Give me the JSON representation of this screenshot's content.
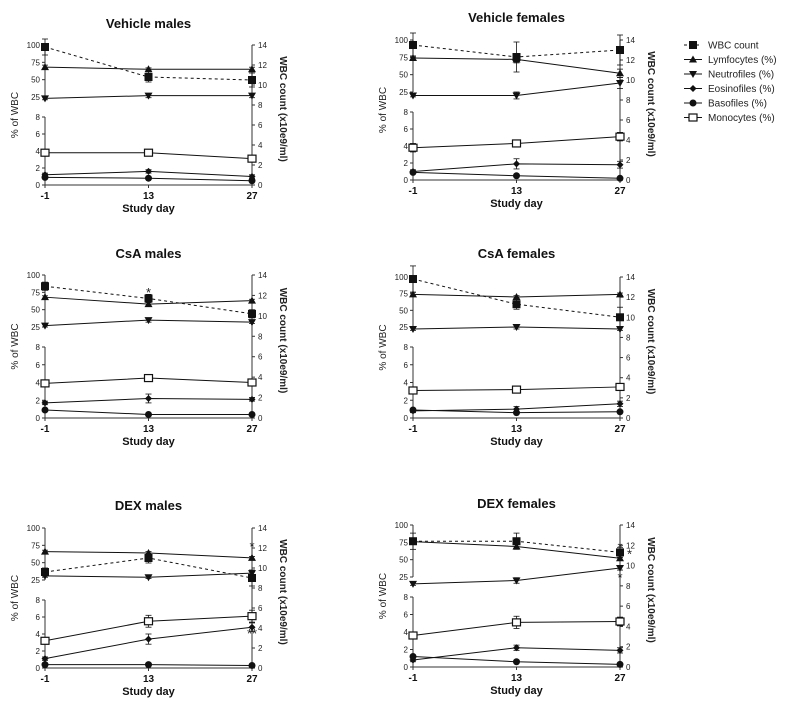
{
  "legend": {
    "items": [
      {
        "label": "WBC count",
        "marker": "square-filled",
        "dashed": true
      },
      {
        "label": "Lymfocytes (%)",
        "marker": "triangle-up",
        "dashed": false
      },
      {
        "label": "Neutrofiles (%)",
        "marker": "triangle-down",
        "dashed": false
      },
      {
        "label": "Eosinofiles (%)",
        "marker": "diamond",
        "dashed": false
      },
      {
        "label": "Basofiles (%)",
        "marker": "circle",
        "dashed": false
      },
      {
        "label": "Monocytes (%)",
        "marker": "square-open",
        "dashed": false
      }
    ]
  },
  "chart_data": [
    {
      "type": "line",
      "title": "Vehicle males",
      "xlabel": "Study day",
      "ylabel": "% of WBC",
      "y2label": "WBC count (x10e9/ml)",
      "x": [
        -1,
        13,
        27
      ],
      "upper_yticks": [
        25,
        50,
        75,
        100
      ],
      "lower_yticks": [
        0,
        2,
        4,
        6,
        8
      ],
      "y2ticks": [
        0,
        2,
        4,
        6,
        8,
        10,
        12,
        14
      ],
      "series": [
        {
          "name": "WBC count",
          "axis": "right",
          "values": [
            13.8,
            10.8,
            10.5
          ],
          "err": [
            0.8,
            0.5,
            0.7
          ]
        },
        {
          "name": "Lymfocytes (%)",
          "axis": "upper",
          "values": [
            68,
            65,
            65
          ],
          "err": [
            3,
            2,
            3
          ]
        },
        {
          "name": "Neutrofiles (%)",
          "axis": "upper",
          "values": [
            23,
            27,
            27
          ],
          "err": [
            2,
            3,
            3
          ]
        },
        {
          "name": "Eosinofiles (%)",
          "axis": "lower",
          "values": [
            1.2,
            1.6,
            1.0
          ],
          "err": [
            0.2,
            0.2,
            0.2
          ]
        },
        {
          "name": "Basofiles (%)",
          "axis": "lower",
          "values": [
            0.9,
            0.8,
            0.5
          ],
          "err": [
            0.1,
            0.1,
            0.1
          ]
        },
        {
          "name": "Monocytes (%)",
          "axis": "lower",
          "values": [
            3.8,
            3.8,
            3.1
          ],
          "err": [
            0.3,
            0.2,
            0.3
          ]
        }
      ],
      "annotations": []
    },
    {
      "type": "line",
      "title": "Vehicle females",
      "xlabel": "Study day",
      "ylabel": "% of WBC",
      "y2label": "WBC count (x10e9/ml)",
      "x": [
        -1,
        13,
        27
      ],
      "upper_yticks": [
        25,
        50,
        75,
        100
      ],
      "lower_yticks": [
        0,
        2,
        4,
        6,
        8
      ],
      "y2ticks": [
        0,
        2,
        4,
        6,
        8,
        10,
        12,
        14
      ],
      "series": [
        {
          "name": "WBC count",
          "axis": "right",
          "values": [
            13.5,
            12.3,
            13.0
          ],
          "err": [
            1.2,
            1.5,
            1.5
          ]
        },
        {
          "name": "Lymfocytes (%)",
          "axis": "upper",
          "values": [
            74,
            72,
            52
          ],
          "err": [
            3,
            5,
            6
          ]
        },
        {
          "name": "Neutrofiles (%)",
          "axis": "upper",
          "values": [
            20,
            20,
            38
          ],
          "err": [
            2,
            5,
            8
          ]
        },
        {
          "name": "Eosinofiles (%)",
          "axis": "lower",
          "values": [
            1.0,
            1.9,
            1.8
          ],
          "err": [
            0.2,
            0.6,
            0.4
          ]
        },
        {
          "name": "Basofiles (%)",
          "axis": "lower",
          "values": [
            0.9,
            0.5,
            0.2
          ],
          "err": [
            0.1,
            0.1,
            0.1
          ]
        },
        {
          "name": "Monocytes (%)",
          "axis": "lower",
          "values": [
            3.8,
            4.3,
            5.1
          ],
          "err": [
            0.5,
            0.4,
            0.5
          ]
        }
      ],
      "annotations": []
    },
    {
      "type": "line",
      "title": "CsA males",
      "xlabel": "Study day",
      "ylabel": "% of WBC",
      "y2label": "WBC count (x10e9/ml)",
      "x": [
        -1,
        13,
        27
      ],
      "upper_yticks": [
        25,
        50,
        75,
        100
      ],
      "lower_yticks": [
        0,
        2,
        4,
        6,
        8
      ],
      "y2ticks": [
        0,
        2,
        4,
        6,
        8,
        10,
        12,
        14
      ],
      "series": [
        {
          "name": "WBC count",
          "axis": "right",
          "values": [
            12.9,
            11.7,
            10.2
          ],
          "err": [
            0.4,
            0.4,
            0.4
          ]
        },
        {
          "name": "Lymfocytes (%)",
          "axis": "upper",
          "values": [
            68,
            58,
            63
          ],
          "err": [
            2,
            3,
            2
          ]
        },
        {
          "name": "Neutrofiles (%)",
          "axis": "upper",
          "values": [
            27,
            35,
            32
          ],
          "err": [
            2,
            3,
            2
          ]
        },
        {
          "name": "Eosinofiles (%)",
          "axis": "lower",
          "values": [
            1.7,
            2.2,
            2.1
          ],
          "err": [
            0.2,
            0.5,
            0.2
          ]
        },
        {
          "name": "Basofiles (%)",
          "axis": "lower",
          "values": [
            0.9,
            0.4,
            0.4
          ],
          "err": [
            0.1,
            0.1,
            0.1
          ]
        },
        {
          "name": "Monocytes (%)",
          "axis": "lower",
          "values": [
            3.9,
            4.5,
            4.0
          ],
          "err": [
            0.2,
            0.3,
            0.2
          ]
        }
      ],
      "annotations": [
        {
          "text": "*",
          "series": "Lymfocytes (%)",
          "index": 1
        }
      ]
    },
    {
      "type": "line",
      "title": "CsA females",
      "xlabel": "Study day",
      "ylabel": "% of WBC",
      "y2label": "WBC count (x10e9/ml)",
      "x": [
        -1,
        13,
        27
      ],
      "upper_yticks": [
        25,
        50,
        75,
        100
      ],
      "lower_yticks": [
        0,
        2,
        4,
        6,
        8
      ],
      "y2ticks": [
        0,
        2,
        4,
        6,
        8,
        10,
        12,
        14
      ],
      "series": [
        {
          "name": "WBC count",
          "axis": "right",
          "values": [
            13.8,
            11.3,
            10.0
          ],
          "err": [
            1.3,
            0.5,
            1.0
          ]
        },
        {
          "name": "Lymfocytes (%)",
          "axis": "upper",
          "values": [
            74,
            70,
            74
          ],
          "err": [
            3,
            2,
            2
          ]
        },
        {
          "name": "Neutrofiles (%)",
          "axis": "upper",
          "values": [
            22,
            25,
            22
          ],
          "err": [
            2,
            3,
            2
          ]
        },
        {
          "name": "Eosinofiles (%)",
          "axis": "lower",
          "values": [
            0.8,
            1.0,
            1.6
          ],
          "err": [
            0.2,
            0.3,
            0.3
          ]
        },
        {
          "name": "Basofiles (%)",
          "axis": "lower",
          "values": [
            0.9,
            0.6,
            0.7
          ],
          "err": [
            0.1,
            0.1,
            0.1
          ]
        },
        {
          "name": "Monocytes (%)",
          "axis": "lower",
          "values": [
            3.1,
            3.2,
            3.5
          ],
          "err": [
            0.2,
            0.2,
            0.2
          ]
        }
      ],
      "annotations": []
    },
    {
      "type": "line",
      "title": "DEX males",
      "xlabel": "Study day",
      "ylabel": "% of WBC",
      "y2label": "WBC count (x10e9/ml)",
      "x": [
        -1,
        13,
        27
      ],
      "upper_yticks": [
        25,
        50,
        75,
        100
      ],
      "lower_yticks": [
        0,
        2,
        4,
        6,
        8
      ],
      "y2ticks": [
        0,
        2,
        4,
        6,
        8,
        10,
        12,
        14
      ],
      "series": [
        {
          "name": "WBC count",
          "axis": "right",
          "values": [
            9.6,
            11.0,
            9.0
          ],
          "err": [
            0.4,
            0.5,
            0.8
          ]
        },
        {
          "name": "Lymfocytes (%)",
          "axis": "upper",
          "values": [
            66,
            64,
            57
          ],
          "err": [
            2,
            2,
            2
          ]
        },
        {
          "name": "Neutrofiles (%)",
          "axis": "upper",
          "values": [
            31,
            29,
            35
          ],
          "err": [
            2,
            2,
            2
          ]
        },
        {
          "name": "Eosinofiles (%)",
          "axis": "lower",
          "values": [
            1.1,
            3.4,
            4.8
          ],
          "err": [
            0.2,
            0.6,
            0.5
          ]
        },
        {
          "name": "Basofiles (%)",
          "axis": "lower",
          "values": [
            0.4,
            0.4,
            0.3
          ],
          "err": [
            0.1,
            0.1,
            0.1
          ]
        },
        {
          "name": "Monocytes (%)",
          "axis": "lower",
          "values": [
            3.2,
            5.5,
            6.1
          ],
          "err": [
            0.3,
            0.7,
            0.7
          ]
        }
      ],
      "annotations": [
        {
          "text": "*",
          "series": "Lymfocytes (%)",
          "index": 2
        },
        {
          "text": "**",
          "series": "Eosinofiles (%)",
          "index": 2
        }
      ]
    },
    {
      "type": "line",
      "title": "DEX females",
      "xlabel": "Study day",
      "ylabel": "% of WBC",
      "y2label": "WBC count (x10e9/ml)",
      "x": [
        -1,
        13,
        27
      ],
      "upper_yticks": [
        25,
        50,
        75,
        100
      ],
      "lower_yticks": [
        0,
        2,
        4,
        6,
        8
      ],
      "y2ticks": [
        0,
        2,
        4,
        6,
        8,
        10,
        12,
        14
      ],
      "series": [
        {
          "name": "WBC count",
          "axis": "right",
          "values": [
            12.4,
            12.4,
            11.3
          ],
          "err": [
            0.8,
            0.8,
            0.5
          ]
        },
        {
          "name": "Lymfocytes (%)",
          "axis": "upper",
          "values": [
            76,
            69,
            52
          ],
          "err": [
            2,
            3,
            3
          ]
        },
        {
          "name": "Neutrofiles (%)",
          "axis": "upper",
          "values": [
            15,
            20,
            38
          ],
          "err": [
            2,
            4,
            3
          ]
        },
        {
          "name": "Eosinofiles (%)",
          "axis": "lower",
          "values": [
            0.8,
            2.2,
            1.9
          ],
          "err": [
            0.2,
            0.3,
            0.3
          ]
        },
        {
          "name": "Basofiles (%)",
          "axis": "lower",
          "values": [
            1.2,
            0.6,
            0.3
          ],
          "err": [
            0.1,
            0.1,
            0.1
          ]
        },
        {
          "name": "Monocytes (%)",
          "axis": "lower",
          "values": [
            3.6,
            5.1,
            5.2
          ],
          "err": [
            0.3,
            0.7,
            0.5
          ]
        }
      ],
      "annotations": [
        {
          "text": "*",
          "series": "Lymfocytes (%)",
          "index": 2
        },
        {
          "text": "*",
          "series": "WBC count",
          "index": 2
        },
        {
          "text": "*",
          "series": "Neutrofiles (%)",
          "index": 2
        }
      ]
    }
  ]
}
